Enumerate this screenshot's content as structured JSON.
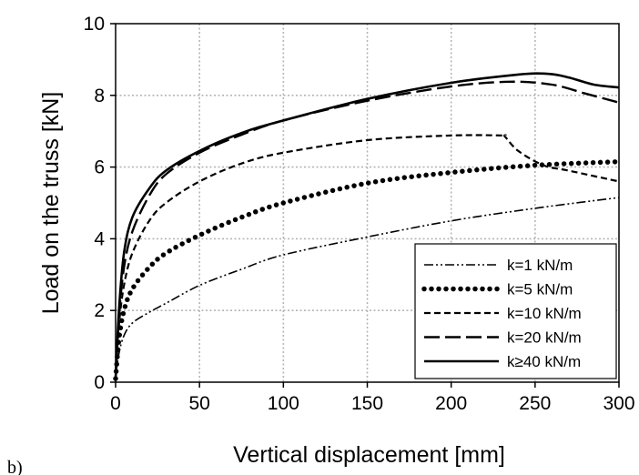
{
  "panel_label": "b)",
  "chart_data": {
    "type": "line",
    "xlabel": "Vertical displacement [mm]",
    "ylabel": "Load on the truss [kN]",
    "xlim": [
      0,
      300
    ],
    "ylim": [
      0,
      10
    ],
    "x_ticks": [
      "0",
      "50",
      "100",
      "150",
      "200",
      "250",
      "300"
    ],
    "y_ticks": [
      "0",
      "2",
      "4",
      "6",
      "8",
      "10"
    ],
    "grid": true,
    "legend_position": "bottom-right",
    "series": [
      {
        "name": "k=1 kN/m",
        "style": "dash-dot-dot",
        "x": [
          0,
          2,
          5,
          10,
          20,
          30,
          50,
          75,
          100,
          150,
          200,
          250,
          300
        ],
        "y": [
          0.1,
          0.8,
          1.3,
          1.65,
          1.95,
          2.2,
          2.7,
          3.15,
          3.55,
          4.05,
          4.5,
          4.85,
          5.15
        ]
      },
      {
        "name": "k=5 kN/m",
        "style": "dotted",
        "x": [
          0,
          2,
          5,
          10,
          20,
          30,
          50,
          75,
          100,
          150,
          200,
          250,
          300
        ],
        "y": [
          0.1,
          1.2,
          2.0,
          2.6,
          3.2,
          3.6,
          4.1,
          4.6,
          5.0,
          5.55,
          5.85,
          6.05,
          6.15
        ]
      },
      {
        "name": "k=10 kN/m",
        "style": "short-dash",
        "x": [
          0,
          2,
          5,
          10,
          20,
          30,
          50,
          75,
          100,
          150,
          200,
          230,
          232,
          240,
          255,
          270,
          300
        ],
        "y": [
          0.1,
          1.6,
          2.7,
          3.6,
          4.5,
          5.0,
          5.6,
          6.1,
          6.4,
          6.75,
          6.88,
          6.88,
          6.85,
          6.45,
          6.05,
          5.9,
          5.6
        ]
      },
      {
        "name": "k=20 kN/m",
        "style": "long-dash",
        "x": [
          0,
          2,
          5,
          10,
          20,
          30,
          50,
          75,
          100,
          150,
          200,
          235,
          260,
          280,
          300
        ],
        "y": [
          0.1,
          1.8,
          3.2,
          4.2,
          5.2,
          5.8,
          6.4,
          6.9,
          7.3,
          7.85,
          8.25,
          8.38,
          8.3,
          8.05,
          7.8
        ]
      },
      {
        "name": "k≥40 kN/m",
        "style": "solid",
        "x": [
          0,
          2,
          5,
          10,
          20,
          30,
          50,
          75,
          100,
          150,
          200,
          240,
          258,
          270,
          285,
          300
        ],
        "y": [
          0.1,
          2.0,
          3.6,
          4.6,
          5.4,
          5.9,
          6.45,
          6.95,
          7.3,
          7.9,
          8.35,
          8.58,
          8.6,
          8.5,
          8.3,
          8.22
        ]
      }
    ]
  }
}
